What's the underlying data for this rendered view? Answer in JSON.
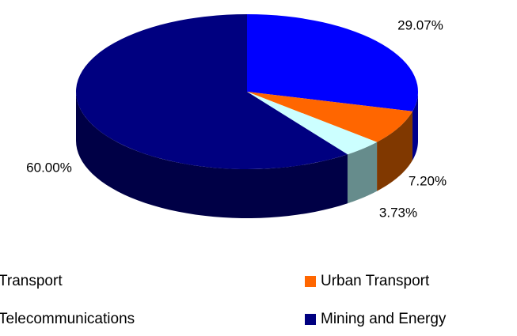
{
  "chart_data": {
    "type": "pie",
    "categories": [
      "Transport",
      "Urban Transport",
      "Telecommunications",
      "Mining and Energy"
    ],
    "values": [
      29.07,
      7.2,
      3.73,
      60.0
    ],
    "value_labels": [
      "29.07%",
      "7.20%",
      "3.73%",
      "60.00%"
    ],
    "colors": [
      "#0000ff",
      "#ff6600",
      "#ccffff",
      "#000080"
    ],
    "legend": "bottom"
  }
}
